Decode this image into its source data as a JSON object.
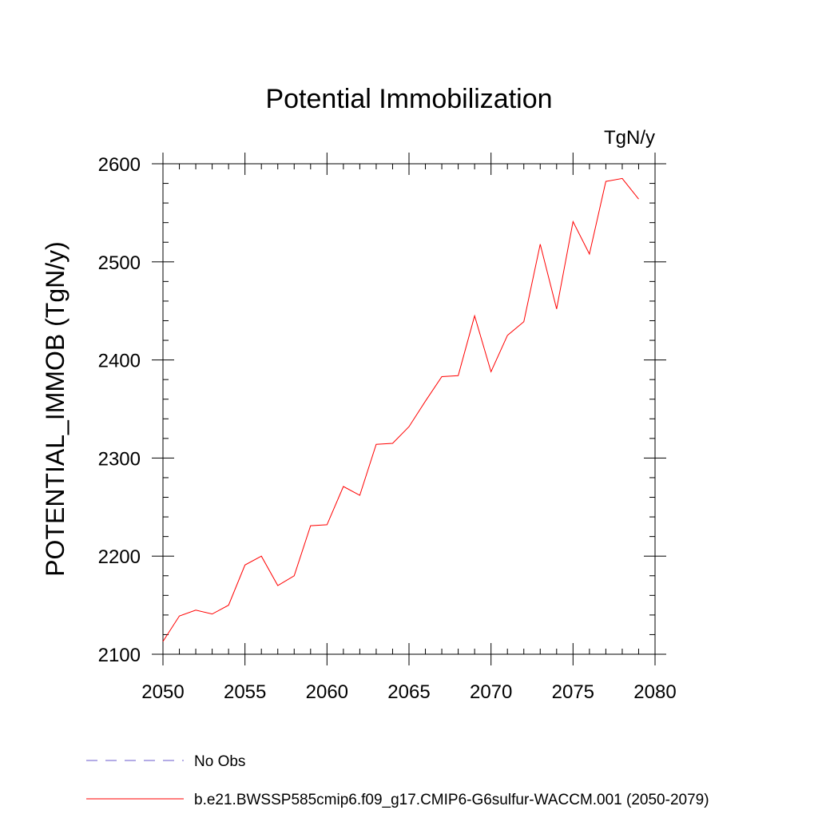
{
  "chart_data": {
    "type": "line",
    "title": "Potential Immobilization",
    "units_label": "TgN/y",
    "xlabel": "",
    "ylabel": "POTENTIAL_IMMOB  (TgN/y)",
    "xlim": [
      2050,
      2080
    ],
    "ylim": [
      2100,
      2600
    ],
    "x_ticks": [
      "2050",
      "2055",
      "2060",
      "2065",
      "2070",
      "2075",
      "2080"
    ],
    "y_ticks": [
      "2100",
      "2200",
      "2300",
      "2400",
      "2500",
      "2600"
    ],
    "grid": false,
    "legend_position": "bottom",
    "series": [
      {
        "name": "b.e21.BWSSP585cmip6.f09_g17.CMIP6-G6sulfur-WACCM.001 (2050-2079)",
        "color": "#ff0000",
        "style": "solid",
        "x": [
          2050,
          2051,
          2052,
          2053,
          2054,
          2055,
          2056,
          2057,
          2058,
          2059,
          2060,
          2061,
          2062,
          2063,
          2064,
          2065,
          2066,
          2067,
          2068,
          2069,
          2070,
          2071,
          2072,
          2073,
          2074,
          2075,
          2076,
          2077,
          2078,
          2079
        ],
        "y": [
          2113,
          2139,
          2145,
          2141,
          2150,
          2191,
          2200,
          2170,
          2180,
          2231,
          2232,
          2271,
          2262,
          2314,
          2315,
          2332,
          2358,
          2383,
          2384,
          2445,
          2388,
          2425,
          2439,
          2518,
          2452,
          2541,
          2508,
          2582,
          2585,
          2564
        ]
      }
    ],
    "legend": [
      {
        "label": "No Obs",
        "color": "#6a5acd",
        "style": "dashed"
      },
      {
        "label": "b.e21.BWSSP585cmip6.f09_g17.CMIP6-G6sulfur-WACCM.001 (2050-2079)",
        "color": "#ff0000",
        "style": "solid"
      }
    ]
  }
}
